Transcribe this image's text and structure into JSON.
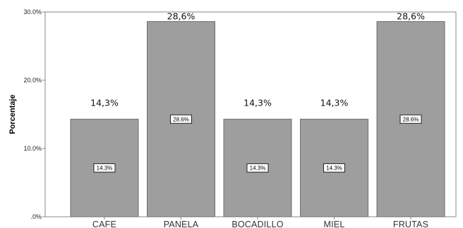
{
  "chart_data": {
    "type": "bar",
    "title": "",
    "xlabel": "",
    "ylabel": "Porcentaje",
    "categories": [
      "CAFE",
      "PANELA",
      "BOCADILLO",
      "MIEL",
      "FRUTAS"
    ],
    "values": [
      14.3,
      28.6,
      14.3,
      14.3,
      28.6
    ],
    "top_labels": [
      "14,3%",
      "28,6%",
      "14,3%",
      "14,3%",
      "28,6%"
    ],
    "inner_labels": [
      "14.3%",
      "28.6%",
      "14.3%",
      "14.3%",
      "28.6%"
    ],
    "yticks": [
      0,
      10,
      20,
      30
    ],
    "ytick_labels": [
      ".0%",
      "10.0%",
      "20.0%",
      "30.0%"
    ],
    "ylim": [
      0,
      30
    ],
    "grid": false,
    "legend": "none",
    "colors": {
      "bar_fill": "#9e9e9e",
      "bar_stroke": "#6f6f6f",
      "axis": "#888888",
      "label_box_fill": "#ffffff",
      "label_box_stroke": "#222222"
    }
  }
}
